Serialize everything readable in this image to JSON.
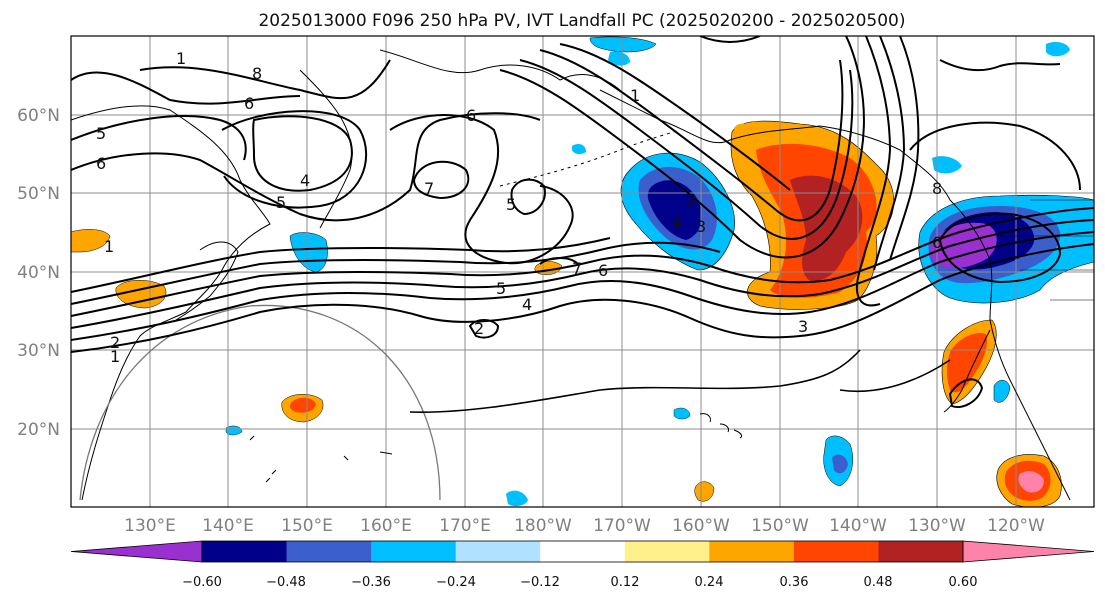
{
  "title": "2025013000 F096 250 hPa PV, IVT Landfall PC (2025020200 - 2025020500)",
  "lat_labels": [
    "60°N",
    "50°N",
    "40°N",
    "30°N",
    "20°N"
  ],
  "lon_labels": [
    "130°E",
    "140°E",
    "150°E",
    "160°E",
    "170°E",
    "180°W",
    "170°W",
    "160°W",
    "150°W",
    "140°W",
    "130°W",
    "120°W"
  ],
  "colorbar": {
    "ticks": [
      "−0.60",
      "−0.48",
      "−0.36",
      "−0.24",
      "−0.12",
      "0.12",
      "0.24",
      "0.36",
      "0.48",
      "0.60"
    ],
    "colors": [
      "#9b30d0",
      "#00008b",
      "#3a5fcd",
      "#00bfff",
      "#b0e2ff",
      "#ffffff",
      "#fff08c",
      "#ffa500",
      "#ff4500",
      "#b22222",
      "#ff82ab"
    ]
  },
  "contour_labels": [
    "1",
    "8",
    "6",
    "5",
    "6",
    "4",
    "5",
    "6",
    "7",
    "5",
    "1",
    "2",
    "4",
    "3",
    "7",
    "6",
    "5",
    "4",
    "2",
    "3",
    "8",
    "6",
    "1",
    "2",
    "1"
  ]
}
